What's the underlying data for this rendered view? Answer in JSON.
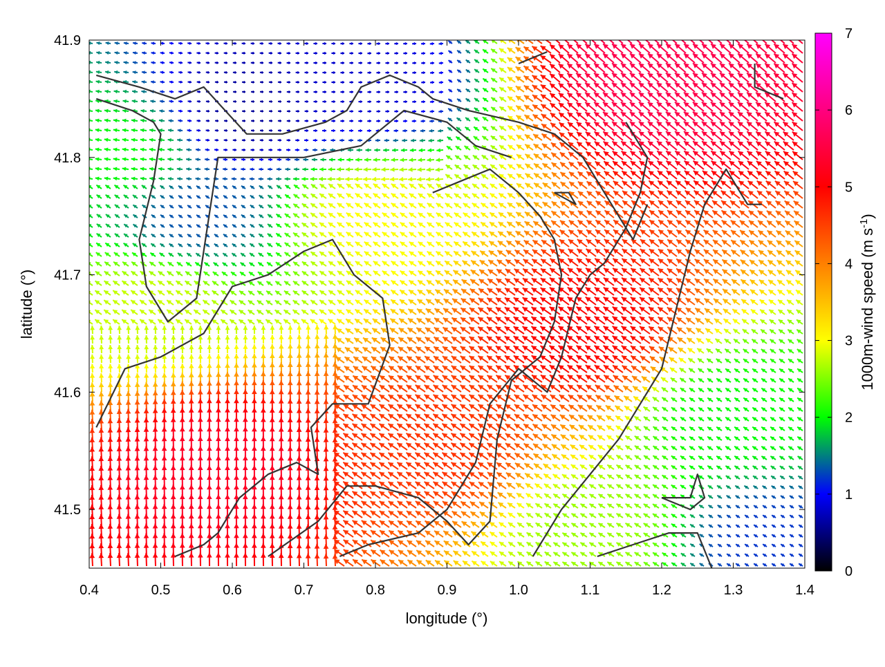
{
  "chart_data": {
    "type": "vector-field",
    "title": "",
    "xlabel": "longitude (°)",
    "ylabel": "latitude (°)",
    "xlim": [
      0.4,
      1.4
    ],
    "ylim": [
      41.45,
      41.9
    ],
    "xticks": [
      "0.4",
      "0.5",
      "0.6",
      "0.7",
      "0.8",
      "0.9",
      "1.0",
      "1.1",
      "1.2",
      "1.3",
      "1.4"
    ],
    "yticks": [
      "41.5",
      "41.6",
      "41.7",
      "41.8",
      "41.9"
    ],
    "colorbar": {
      "label": "1000m-wind speed (m s",
      "label_superscript": "-1",
      "label_suffix": ")",
      "range": [
        0,
        7
      ],
      "ticks": [
        "0",
        "1",
        "2",
        "3",
        "4",
        "5",
        "6",
        "7"
      ],
      "colormap": [
        "#000000",
        "#0000ff",
        "#00ff00",
        "#ffff00",
        "#ff8000",
        "#ff0000",
        "#ff00ff"
      ]
    },
    "speed_regions": [
      {
        "description": "weak flow",
        "lon": 0.62,
        "lat": 41.84,
        "speed": 0.6
      },
      {
        "description": "weak flow",
        "lon": 0.78,
        "lat": 41.86,
        "speed": 0.8
      },
      {
        "description": "weak flow",
        "lon": 0.55,
        "lat": 41.75,
        "speed": 1.3
      },
      {
        "description": "moderate",
        "lon": 0.45,
        "lat": 41.8,
        "speed": 2.0
      },
      {
        "description": "moderate",
        "lon": 0.5,
        "lat": 41.67,
        "speed": 2.8
      },
      {
        "description": "moderate",
        "lon": 0.8,
        "lat": 41.75,
        "speed": 3.0
      },
      {
        "description": "strong",
        "lon": 0.58,
        "lat": 41.53,
        "speed": 5.3
      },
      {
        "description": "strong",
        "lon": 1.2,
        "lat": 41.87,
        "speed": 5.6
      },
      {
        "description": "strong",
        "lon": 1.1,
        "lat": 41.65,
        "speed": 5.0
      },
      {
        "description": "strong",
        "lon": 0.9,
        "lat": 41.55,
        "speed": 4.6
      },
      {
        "description": "moderate",
        "lon": 1.3,
        "lat": 41.58,
        "speed": 2.0
      },
      {
        "description": "moderate",
        "lon": 1.1,
        "lat": 41.48,
        "speed": 2.6
      },
      {
        "description": "moderate",
        "lon": 1.35,
        "lat": 41.47,
        "speed": 1.2
      }
    ],
    "contours": [
      [
        [
          0.41,
          41.87
        ],
        [
          0.47,
          41.86
        ],
        [
          0.52,
          41.85
        ],
        [
          0.56,
          41.86
        ],
        [
          0.59,
          41.84
        ],
        [
          0.62,
          41.82
        ],
        [
          0.67,
          41.82
        ],
        [
          0.73,
          41.83
        ],
        [
          0.76,
          41.84
        ],
        [
          0.78,
          41.86
        ],
        [
          0.82,
          41.87
        ],
        [
          0.86,
          41.86
        ],
        [
          0.88,
          41.85
        ],
        [
          0.93,
          41.84
        ],
        [
          1.0,
          41.83
        ],
        [
          1.05,
          41.82
        ],
        [
          1.09,
          41.8
        ],
        [
          1.13,
          41.76
        ],
        [
          1.16,
          41.73
        ],
        [
          1.18,
          41.76
        ]
      ],
      [
        [
          0.41,
          41.85
        ],
        [
          0.46,
          41.84
        ],
        [
          0.49,
          41.83
        ],
        [
          0.5,
          41.82
        ],
        [
          0.49,
          41.78
        ],
        [
          0.47,
          41.73
        ],
        [
          0.48,
          41.69
        ],
        [
          0.51,
          41.66
        ],
        [
          0.55,
          41.68
        ],
        [
          0.56,
          41.72
        ],
        [
          0.57,
          41.76
        ],
        [
          0.58,
          41.8
        ],
        [
          0.62,
          41.8
        ],
        [
          0.7,
          41.8
        ],
        [
          0.78,
          41.81
        ],
        [
          0.84,
          41.84
        ],
        [
          0.9,
          41.83
        ],
        [
          0.94,
          41.81
        ],
        [
          0.99,
          41.8
        ]
      ],
      [
        [
          0.41,
          41.57
        ],
        [
          0.45,
          41.62
        ],
        [
          0.5,
          41.63
        ],
        [
          0.56,
          41.65
        ],
        [
          0.6,
          41.69
        ],
        [
          0.65,
          41.7
        ],
        [
          0.7,
          41.72
        ],
        [
          0.74,
          41.73
        ],
        [
          0.77,
          41.7
        ],
        [
          0.81,
          41.68
        ],
        [
          0.82,
          41.64
        ],
        [
          0.79,
          41.59
        ],
        [
          0.74,
          41.59
        ],
        [
          0.71,
          41.57
        ],
        [
          0.72,
          41.53
        ],
        [
          0.69,
          41.54
        ],
        [
          0.65,
          41.53
        ],
        [
          0.61,
          41.51
        ],
        [
          0.58,
          41.48
        ],
        [
          0.56,
          41.47
        ],
        [
          0.52,
          41.46
        ]
      ],
      [
        [
          0.65,
          41.46
        ],
        [
          0.72,
          41.49
        ],
        [
          0.76,
          41.52
        ],
        [
          0.8,
          41.52
        ],
        [
          0.86,
          41.51
        ],
        [
          0.9,
          41.49
        ],
        [
          0.93,
          41.47
        ],
        [
          0.96,
          41.49
        ],
        [
          0.97,
          41.56
        ],
        [
          0.99,
          41.61
        ],
        [
          1.03,
          41.63
        ],
        [
          1.05,
          41.66
        ],
        [
          1.06,
          41.7
        ],
        [
          1.05,
          41.73
        ],
        [
          1.03,
          41.75
        ],
        [
          1.0,
          41.77
        ],
        [
          0.96,
          41.79
        ],
        [
          0.92,
          41.78
        ],
        [
          0.88,
          41.77
        ]
      ],
      [
        [
          0.75,
          41.46
        ],
        [
          0.79,
          41.47
        ],
        [
          0.86,
          41.48
        ],
        [
          0.9,
          41.5
        ],
        [
          0.94,
          41.54
        ],
        [
          0.96,
          41.59
        ],
        [
          1.0,
          41.62
        ],
        [
          1.04,
          41.6
        ],
        [
          1.06,
          41.63
        ],
        [
          1.08,
          41.68
        ],
        [
          1.1,
          41.7
        ],
        [
          1.12,
          41.71
        ],
        [
          1.15,
          41.74
        ],
        [
          1.17,
          41.77
        ],
        [
          1.18,
          41.8
        ],
        [
          1.15,
          41.83
        ]
      ],
      [
        [
          1.02,
          41.46
        ],
        [
          1.06,
          41.5
        ],
        [
          1.1,
          41.53
        ],
        [
          1.14,
          41.56
        ],
        [
          1.17,
          41.59
        ],
        [
          1.2,
          41.62
        ],
        [
          1.22,
          41.67
        ],
        [
          1.24,
          41.72
        ],
        [
          1.26,
          41.76
        ],
        [
          1.29,
          41.79
        ],
        [
          1.32,
          41.76
        ],
        [
          1.34,
          41.76
        ]
      ],
      [
        [
          1.11,
          41.46
        ],
        [
          1.16,
          41.47
        ],
        [
          1.21,
          41.48
        ],
        [
          1.25,
          41.48
        ],
        [
          1.27,
          41.45
        ]
      ],
      [
        [
          1.2,
          41.51
        ],
        [
          1.24,
          41.51
        ],
        [
          1.25,
          41.53
        ],
        [
          1.26,
          41.51
        ],
        [
          1.24,
          41.5
        ],
        [
          1.2,
          41.51
        ]
      ],
      [
        [
          1.33,
          41.88
        ],
        [
          1.33,
          41.86
        ],
        [
          1.37,
          41.85
        ]
      ],
      [
        [
          1.05,
          41.77
        ],
        [
          1.07,
          41.77
        ],
        [
          1.08,
          41.76
        ],
        [
          1.05,
          41.77
        ]
      ],
      [
        [
          1.0,
          41.88
        ],
        [
          1.04,
          41.89
        ]
      ]
    ]
  }
}
